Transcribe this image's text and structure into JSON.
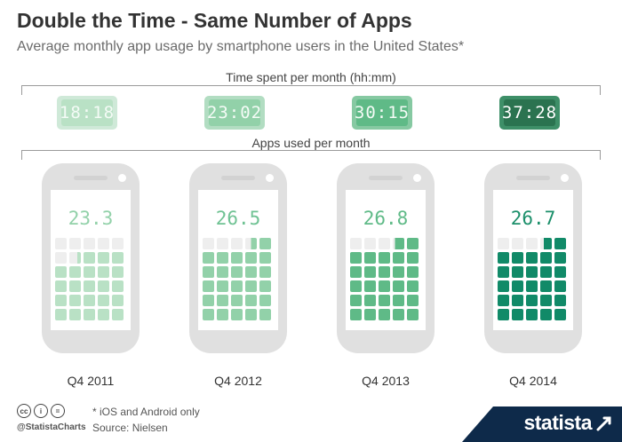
{
  "header": {
    "title": "Double the Time - Same Number of Apps",
    "subtitle": "Average monthly app usage by smartphone users in the United States*"
  },
  "sections": {
    "time_label": "Time spent per month (hh:mm)",
    "apps_label": "Apps used per month"
  },
  "footer": {
    "footnote": "* iOS and Android only",
    "source": "Source: Nielsen",
    "handle": "@StatistaCharts",
    "brand": "statista",
    "license_icons": [
      "cc",
      "i",
      "="
    ]
  },
  "colors": {
    "band": "#0e2a4a",
    "empty_cell": "#eeeeee",
    "quarters": [
      "#b9e1c5",
      "#92d1a9",
      "#5fba87",
      "#118a68"
    ],
    "clock_outer": [
      "#cfe9d8",
      "#b2ddc2",
      "#86c9a2",
      "#3e8f68"
    ],
    "clock_screen": [
      "#b9e1c5",
      "#92d1a9",
      "#5fba87",
      "#2b7350"
    ],
    "count_text": [
      "#92d1a9",
      "#6fc293",
      "#5fba87",
      "#1b8f6a"
    ]
  },
  "chart_data": {
    "type": "bar",
    "title": "Double the Time - Same Number of Apps",
    "subtitle": "Average monthly app usage by smartphone users in the United States*",
    "categories": [
      "Q4 2011",
      "Q4 2012",
      "Q4 2013",
      "Q4 2014"
    ],
    "series": [
      {
        "name": "Time spent per month (hh:mm)",
        "values": [
          "18:18",
          "23:02",
          "30:15",
          "37:28"
        ]
      },
      {
        "name": "Apps used per month",
        "values": [
          23.3,
          26.5,
          26.8,
          26.7
        ]
      }
    ],
    "grid_max": 30,
    "legend": "none"
  }
}
